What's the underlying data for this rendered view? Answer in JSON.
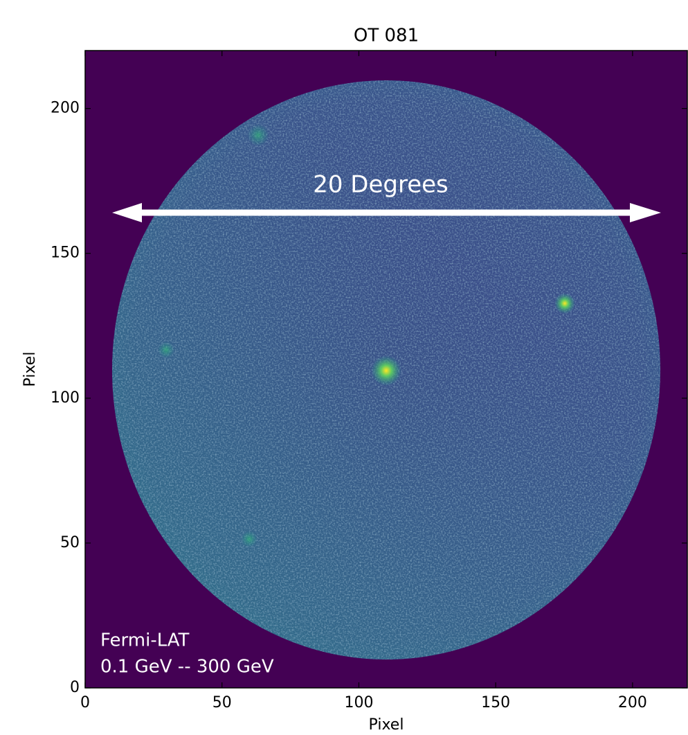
{
  "chart_data": {
    "type": "image",
    "title": "OT 081",
    "xlabel": "Pixel",
    "ylabel": "Pixel",
    "xlim": [
      0,
      220
    ],
    "ylim": [
      0,
      220
    ],
    "xticks": [
      0,
      50,
      100,
      150,
      200
    ],
    "yticks": [
      0,
      50,
      100,
      150,
      200
    ],
    "colormap": "viridis",
    "background_color": "#440154",
    "annotations": [
      "20 Degrees",
      "Fermi-LAT",
      "0.1 GeV -- 300 GeV"
    ]
  }
}
